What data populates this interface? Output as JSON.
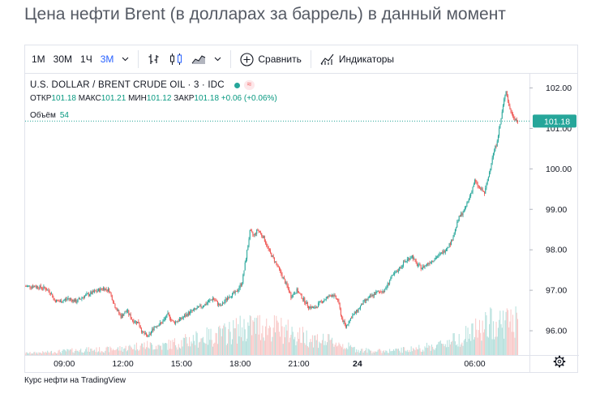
{
  "page": {
    "title": "Цена нефти Brent (в долларах за баррель) в данный момент",
    "footer": "Курс нефти на TradingView"
  },
  "toolbar": {
    "intervals": [
      {
        "label": "1M",
        "active": false
      },
      {
        "label": "30M",
        "active": false
      },
      {
        "label": "1Ч",
        "active": false
      },
      {
        "label": "3M",
        "active": true
      }
    ],
    "compare_label": "Сравнить",
    "indicators_label": "Индикаторы",
    "icons": [
      "chevron-down-icon",
      "bar-chart-icon",
      "candlestick-icon",
      "area-chart-icon",
      "chevron-down-icon",
      "add-compare-icon",
      "indicators-icon"
    ]
  },
  "legend": {
    "symbol": "U.S. DOLLAR / BRENT CRUDE OIL · 3 · IDC",
    "open_label": "ОТКР",
    "open": "101.18",
    "high_label": "МАКС",
    "high": "101.21",
    "low_label": "МИН",
    "low": "101.12",
    "close_label": "ЗАКР",
    "close": "101.18",
    "change": "+0.06 (+0.06%)",
    "volume_label": "Объём",
    "volume": "54"
  },
  "colors": {
    "up": "#26a69a",
    "down": "#ef5350",
    "up_volume": "#b2dfdb",
    "down_volume": "#f8c7c6",
    "accent": "#2962ff",
    "price_line": "#26a69a"
  },
  "chart_data": {
    "type": "candlestick",
    "symbol": "U.S. DOLLAR / BRENT CRUDE OIL",
    "x_ticks": [
      "09:00",
      "12:00",
      "15:00",
      "18:00",
      "21:00",
      "24",
      "06:00"
    ],
    "y_ticks": [
      "102.00",
      "101.00",
      "100.00",
      "99.00",
      "98.00",
      "97.00",
      "96.00"
    ],
    "ylim": [
      95.4,
      102.35
    ],
    "last_price": 101.18,
    "last_price_label": "101.18",
    "close_path": [
      [
        7.0,
        97.1
      ],
      [
        7.5,
        97.1
      ],
      [
        8.0,
        97.05
      ],
      [
        8.3,
        96.95
      ],
      [
        8.5,
        96.75
      ],
      [
        8.8,
        96.72
      ],
      [
        9.2,
        96.8
      ],
      [
        9.6,
        96.72
      ],
      [
        10.0,
        96.85
      ],
      [
        10.5,
        96.95
      ],
      [
        11.0,
        97.05
      ],
      [
        11.3,
        97.0
      ],
      [
        11.6,
        96.6
      ],
      [
        11.9,
        96.35
      ],
      [
        12.2,
        96.5
      ],
      [
        12.5,
        96.25
      ],
      [
        12.8,
        96.2
      ],
      [
        13.0,
        95.95
      ],
      [
        13.3,
        95.85
      ],
      [
        13.6,
        96.1
      ],
      [
        14.0,
        96.2
      ],
      [
        14.3,
        96.4
      ],
      [
        14.6,
        96.2
      ],
      [
        15.0,
        96.3
      ],
      [
        15.4,
        96.45
      ],
      [
        15.8,
        96.55
      ],
      [
        16.2,
        96.65
      ],
      [
        16.6,
        96.8
      ],
      [
        17.0,
        96.6
      ],
      [
        17.4,
        96.85
      ],
      [
        17.8,
        96.95
      ],
      [
        18.1,
        97.2
      ],
      [
        18.3,
        97.8
      ],
      [
        18.5,
        98.45
      ],
      [
        18.7,
        98.35
      ],
      [
        18.9,
        98.5
      ],
      [
        19.2,
        98.3
      ],
      [
        19.5,
        97.95
      ],
      [
        19.8,
        97.7
      ],
      [
        20.1,
        97.4
      ],
      [
        20.4,
        97.1
      ],
      [
        20.6,
        96.85
      ],
      [
        20.9,
        97.0
      ],
      [
        21.2,
        96.8
      ],
      [
        21.5,
        96.6
      ],
      [
        21.8,
        96.55
      ],
      [
        22.1,
        96.7
      ],
      [
        22.4,
        96.8
      ],
      [
        22.7,
        96.9
      ],
      [
        23.0,
        96.75
      ],
      [
        23.2,
        96.3
      ],
      [
        23.4,
        96.1
      ],
      [
        23.7,
        96.35
      ],
      [
        24.0,
        96.5
      ],
      [
        24.3,
        96.7
      ],
      [
        24.7,
        96.85
      ],
      [
        25.0,
        96.95
      ],
      [
        25.4,
        97.0
      ],
      [
        25.7,
        97.3
      ],
      [
        26.0,
        97.45
      ],
      [
        26.4,
        97.7
      ],
      [
        26.8,
        97.85
      ],
      [
        27.0,
        97.65
      ],
      [
        27.3,
        97.55
      ],
      [
        27.7,
        97.7
      ],
      [
        28.0,
        97.8
      ],
      [
        28.4,
        97.95
      ],
      [
        28.8,
        98.2
      ],
      [
        29.0,
        98.5
      ],
      [
        29.2,
        98.8
      ],
      [
        29.5,
        99.0
      ],
      [
        29.8,
        99.4
      ],
      [
        30.0,
        99.7
      ],
      [
        30.2,
        99.55
      ],
      [
        30.5,
        99.4
      ],
      [
        30.7,
        99.8
      ],
      [
        30.9,
        100.3
      ],
      [
        31.1,
        100.6
      ],
      [
        31.3,
        101.1
      ],
      [
        31.5,
        101.7
      ],
      [
        31.6,
        101.95
      ],
      [
        31.75,
        101.55
      ],
      [
        31.9,
        101.35
      ],
      [
        32.05,
        101.25
      ],
      [
        32.2,
        101.18
      ]
    ],
    "volume_profile": [
      [
        7.0,
        3
      ],
      [
        8.0,
        4
      ],
      [
        9.0,
        6
      ],
      [
        10.0,
        8
      ],
      [
        11.0,
        8
      ],
      [
        12.0,
        10
      ],
      [
        13.0,
        15
      ],
      [
        14.0,
        14
      ],
      [
        15.0,
        20
      ],
      [
        16.0,
        26
      ],
      [
        17.0,
        31
      ],
      [
        18.0,
        40
      ],
      [
        19.0,
        45
      ],
      [
        20.0,
        40
      ],
      [
        21.0,
        30
      ],
      [
        22.0,
        24
      ],
      [
        23.0,
        18
      ],
      [
        24.0,
        8
      ],
      [
        25.0,
        6
      ],
      [
        26.0,
        7
      ],
      [
        27.0,
        10
      ],
      [
        28.0,
        14
      ],
      [
        29.0,
        24
      ],
      [
        30.0,
        36
      ],
      [
        31.0,
        50
      ],
      [
        32.2,
        54
      ]
    ]
  }
}
